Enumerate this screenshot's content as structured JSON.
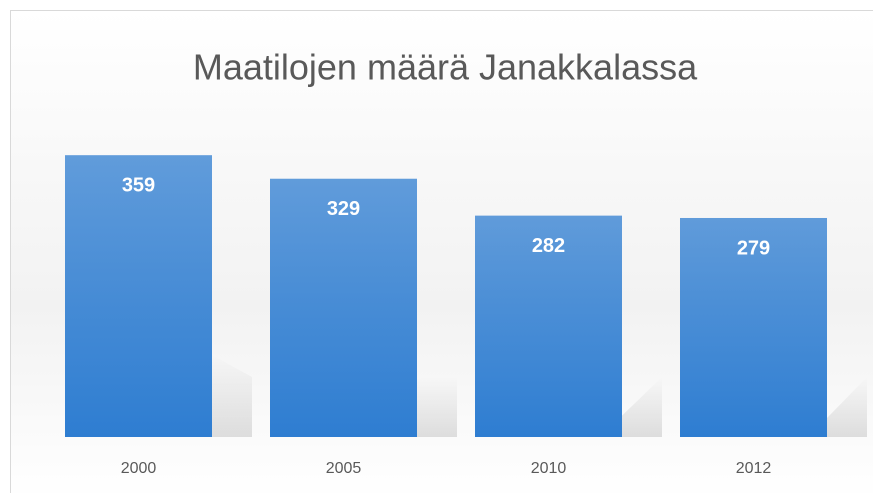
{
  "chart_data": {
    "type": "bar",
    "title": "Maatilojen määrä Janakkalassa",
    "categories": [
      "2000",
      "2005",
      "2010",
      "2012"
    ],
    "values": [
      359,
      329,
      282,
      279
    ],
    "color": "#2e7dd1",
    "ylim": [
      0,
      400
    ],
    "grid": false
  }
}
